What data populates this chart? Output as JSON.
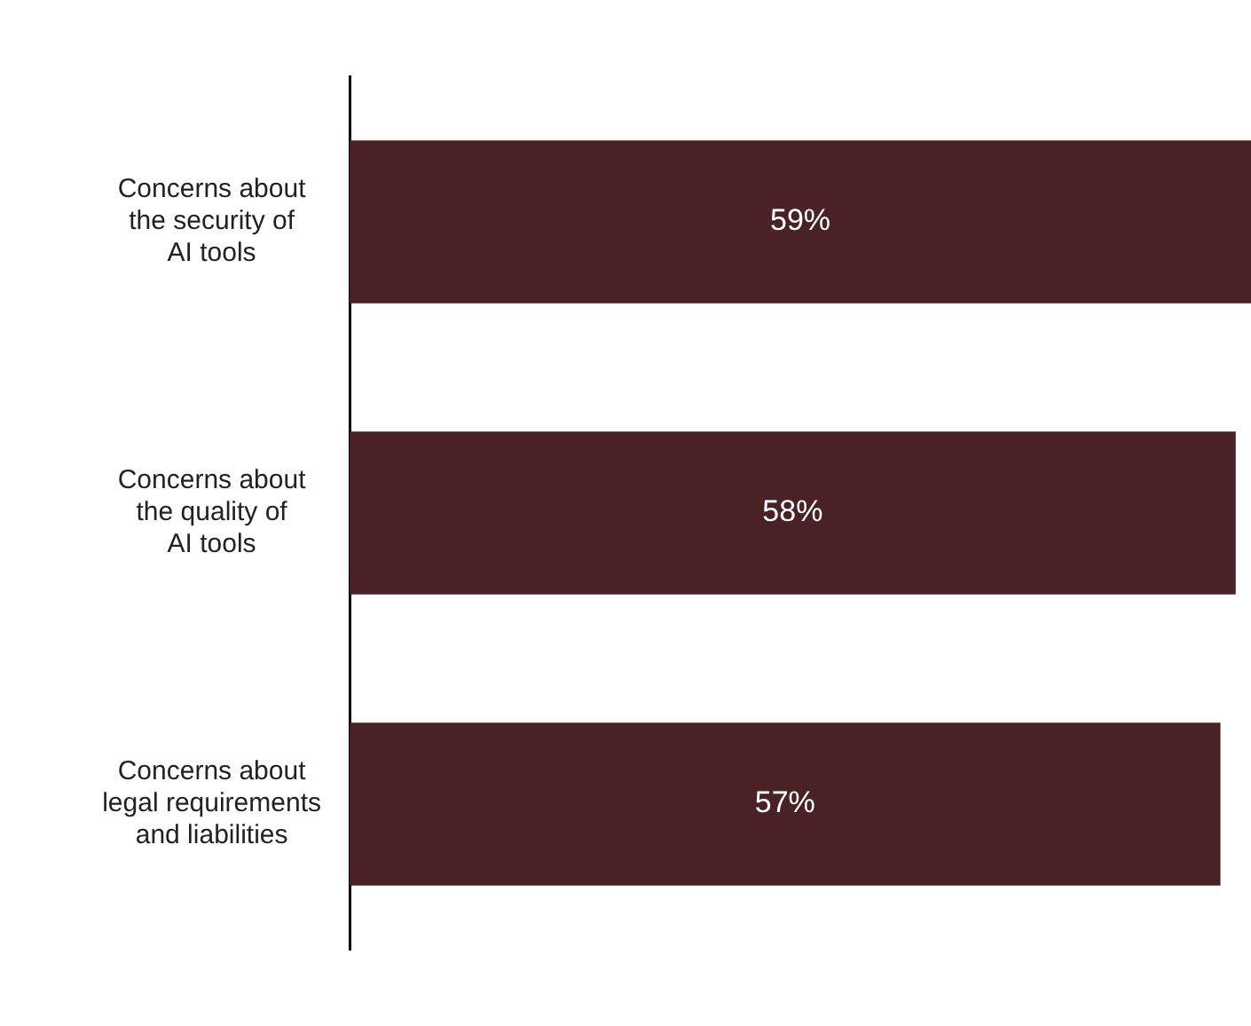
{
  "chart_data": {
    "type": "bar",
    "orientation": "horizontal",
    "categories": [
      "Concerns about\nthe security of\nAI tools",
      "Concerns about\nthe quality of\nAI tools",
      "Concerns about\nlegal requirements\nand liabilities"
    ],
    "values": [
      59,
      58,
      57
    ],
    "value_labels": [
      "59%",
      "58%",
      "57%"
    ],
    "color": "#4a2125",
    "legend": false,
    "tick_labels": "y"
  }
}
